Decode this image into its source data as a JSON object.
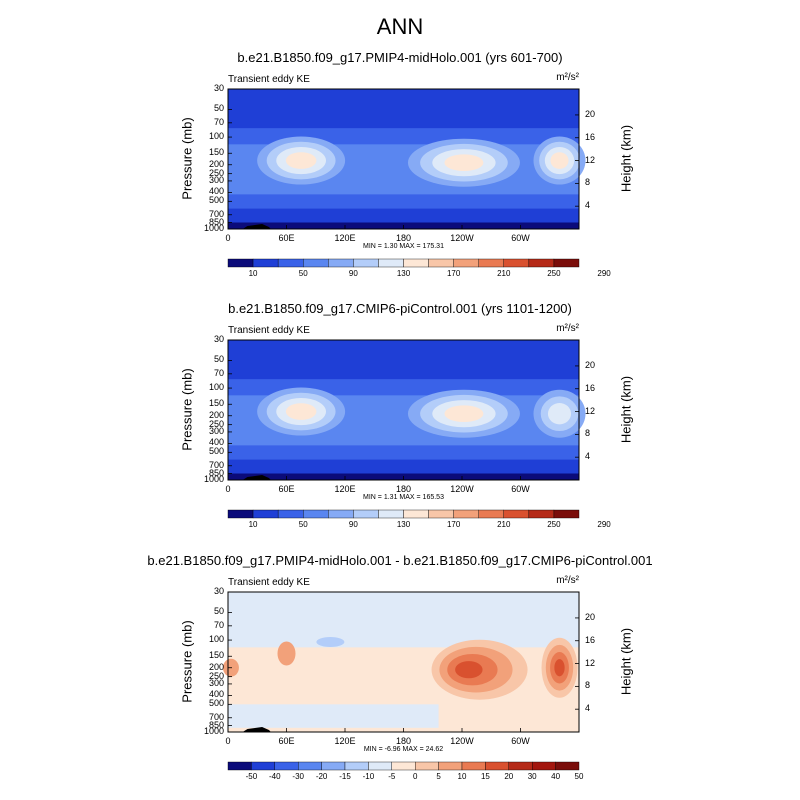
{
  "title": "ANN",
  "panels": [
    {
      "title": "b.e21.B1850.f09_g17.PMIP4-midHolo.001 (yrs 601-700)",
      "label": "Transient eddy KE",
      "units": "m²/s²",
      "minmax": "MIN =   1.30  MAX = 175.31",
      "kind": "abs"
    },
    {
      "title": "b.e21.B1850.f09_g17.CMIP6-piControl.001 (yrs 1101-1200)",
      "label": "Transient eddy KE",
      "units": "m²/s²",
      "minmax": "MIN =   1.31  MAX = 165.53",
      "kind": "abs"
    },
    {
      "title": "b.e21.B1850.f09_g17.PMIP4-midHolo.001 - b.e21.B1850.f09_g17.CMIP6-piControl.001",
      "label": "Transient eddy KE",
      "units": "m²/s²",
      "minmax": "MIN =  -6.96  MAX =  24.62",
      "kind": "diff"
    }
  ],
  "axes": {
    "ylabel": "Pressure (mb)",
    "y2label": "Height (km)",
    "pressure_ticks": [
      "30",
      "50",
      "70",
      "100",
      "150",
      "200",
      "250",
      "300",
      "400",
      "500",
      "700",
      "850",
      "1000"
    ],
    "height_ticks": [
      "20",
      "16",
      "12",
      "8",
      "4"
    ],
    "x_ticks": [
      "0",
      "60E",
      "120E",
      "180",
      "120W",
      "60W"
    ]
  },
  "colorbars": {
    "abs_labels": [
      "10",
      "50",
      "90",
      "130",
      "170",
      "210",
      "250",
      "290"
    ],
    "diff_labels": [
      "-50",
      "-40",
      "-30",
      "-20",
      "-15",
      "-10",
      "-5",
      "0",
      "5",
      "10",
      "15",
      "20",
      "30",
      "40",
      "50"
    ],
    "abs_colors": [
      "#0b0b7a",
      "#1f3fd6",
      "#3a62e8",
      "#5a86f0",
      "#86aaf5",
      "#b3cdf9",
      "#dfeaf8",
      "#fde7d6",
      "#f8c6a8",
      "#f2a17a",
      "#e97a52",
      "#d9512f",
      "#b52a18",
      "#7a0d0a"
    ],
    "diff_colors": [
      "#0b0b7a",
      "#1f3fd6",
      "#3a62e8",
      "#5a86f0",
      "#86aaf5",
      "#b3cdf9",
      "#dfeaf8",
      "#fde7d6",
      "#f8c6a8",
      "#f2a17a",
      "#e97a52",
      "#d9512f",
      "#b52a18",
      "#a3160e",
      "#7a0d0a"
    ]
  },
  "chart_data": [
    {
      "type": "heatmap",
      "title": "b.e21.B1850.f09_g17.PMIP4-midHolo.001 (yrs 601-700)",
      "xlabel": "",
      "ylabel": "Pressure (mb)",
      "y2label": "Height (km)",
      "ylim": [
        1000,
        30
      ],
      "min": 1.3,
      "max": 175.31,
      "maxima": [
        {
          "lon": 75,
          "p": 180,
          "value": 150
        },
        {
          "lon": 242,
          "p": 190,
          "value": 175
        },
        {
          "lon": 340,
          "p": 180,
          "value": 150
        }
      ]
    },
    {
      "type": "heatmap",
      "title": "b.e21.B1850.f09_g17.CMIP6-piControl.001 (yrs 1101-1200)",
      "xlabel": "",
      "ylabel": "Pressure (mb)",
      "y2label": "Height (km)",
      "ylim": [
        1000,
        30
      ],
      "min": 1.31,
      "max": 165.53,
      "maxima": [
        {
          "lon": 75,
          "p": 180,
          "value": 140
        },
        {
          "lon": 242,
          "p": 190,
          "value": 160
        },
        {
          "lon": 340,
          "p": 190,
          "value": 120
        }
      ]
    },
    {
      "type": "heatmap",
      "title": "b.e21.B1850.f09_g17.PMIP4-midHolo.001 - b.e21.B1850.f09_g17.CMIP6-piControl.001",
      "xlabel": "",
      "ylabel": "Pressure (mb)",
      "y2label": "Height (km)",
      "ylim": [
        1000,
        30
      ],
      "min": -6.96,
      "max": 24.62,
      "maxima": [
        {
          "lon": 258,
          "p": 210,
          "value": 20
        },
        {
          "lon": 340,
          "p": 200,
          "value": 15
        }
      ]
    }
  ]
}
